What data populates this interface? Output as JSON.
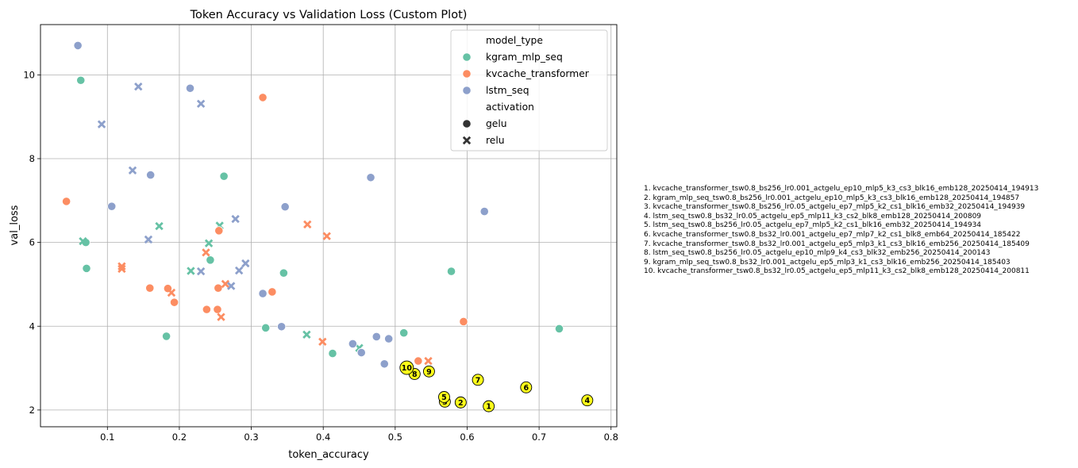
{
  "chart_data": {
    "type": "scatter",
    "title": "Token Accuracy vs Validation Loss (Custom Plot)",
    "xlabel": "token_accuracy",
    "ylabel": "val_loss",
    "xlim": [
      0.007,
      0.808
    ],
    "ylim": [
      1.6,
      11.2
    ],
    "xticks": [
      0.1,
      0.2,
      0.3,
      0.4,
      0.5,
      0.6,
      0.7,
      0.8
    ],
    "xtick_labels": [
      "0.1",
      "0.2",
      "0.3",
      "0.4",
      "0.5",
      "0.6",
      "0.7",
      "0.8"
    ],
    "yticks": [
      2,
      4,
      6,
      8,
      10
    ],
    "ytick_labels": [
      "2",
      "4",
      "6",
      "8",
      "10"
    ],
    "grid": true,
    "legend_placement": "top-right",
    "legend": {
      "hue_title": "model_type",
      "hue_entries": [
        {
          "name": "kgram_mlp_seq",
          "color": "#66c2a5"
        },
        {
          "name": "kvcache_transformer",
          "color": "#fc8d62"
        },
        {
          "name": "lstm_seq",
          "color": "#8da0cb"
        }
      ],
      "style_title": "activation",
      "style_entries": [
        {
          "name": "gelu",
          "marker": "circle"
        },
        {
          "name": "relu",
          "marker": "x"
        }
      ]
    },
    "series": [
      {
        "name": "kgram_mlp_seq",
        "color": "#66c2a5",
        "points": [
          {
            "x": 0.063,
            "y": 9.87,
            "m": "gelu"
          },
          {
            "x": 0.07,
            "y": 6.0,
            "m": "gelu"
          },
          {
            "x": 0.066,
            "y": 6.03,
            "m": "relu"
          },
          {
            "x": 0.071,
            "y": 5.38,
            "m": "gelu"
          },
          {
            "x": 0.172,
            "y": 6.39,
            "m": "relu"
          },
          {
            "x": 0.182,
            "y": 3.76,
            "m": "gelu"
          },
          {
            "x": 0.216,
            "y": 5.32,
            "m": "relu"
          },
          {
            "x": 0.241,
            "y": 5.98,
            "m": "relu"
          },
          {
            "x": 0.243,
            "y": 5.58,
            "m": "gelu"
          },
          {
            "x": 0.256,
            "y": 6.4,
            "m": "relu"
          },
          {
            "x": 0.262,
            "y": 7.58,
            "m": "gelu"
          },
          {
            "x": 0.32,
            "y": 3.96,
            "m": "gelu"
          },
          {
            "x": 0.345,
            "y": 5.27,
            "m": "gelu"
          },
          {
            "x": 0.377,
            "y": 3.8,
            "m": "relu"
          },
          {
            "x": 0.413,
            "y": 3.35,
            "m": "gelu"
          },
          {
            "x": 0.45,
            "y": 3.48,
            "m": "relu"
          },
          {
            "x": 0.512,
            "y": 3.84,
            "m": "gelu"
          },
          {
            "x": 0.578,
            "y": 5.31,
            "m": "gelu"
          },
          {
            "x": 0.728,
            "y": 3.94,
            "m": "gelu"
          }
        ]
      },
      {
        "name": "kvcache_transformer",
        "color": "#fc8d62",
        "points": [
          {
            "x": 0.043,
            "y": 6.98,
            "m": "gelu"
          },
          {
            "x": 0.12,
            "y": 5.43,
            "m": "relu"
          },
          {
            "x": 0.12,
            "y": 5.37,
            "m": "relu"
          },
          {
            "x": 0.159,
            "y": 4.91,
            "m": "gelu"
          },
          {
            "x": 0.184,
            "y": 4.9,
            "m": "gelu"
          },
          {
            "x": 0.189,
            "y": 4.8,
            "m": "relu"
          },
          {
            "x": 0.193,
            "y": 4.57,
            "m": "gelu"
          },
          {
            "x": 0.237,
            "y": 5.76,
            "m": "relu"
          },
          {
            "x": 0.238,
            "y": 4.4,
            "m": "gelu"
          },
          {
            "x": 0.253,
            "y": 4.4,
            "m": "gelu"
          },
          {
            "x": 0.254,
            "y": 4.91,
            "m": "gelu"
          },
          {
            "x": 0.255,
            "y": 6.28,
            "m": "gelu"
          },
          {
            "x": 0.258,
            "y": 4.22,
            "m": "relu"
          },
          {
            "x": 0.264,
            "y": 5.01,
            "m": "relu"
          },
          {
            "x": 0.316,
            "y": 9.46,
            "m": "gelu"
          },
          {
            "x": 0.329,
            "y": 4.82,
            "m": "gelu"
          },
          {
            "x": 0.378,
            "y": 6.43,
            "m": "relu"
          },
          {
            "x": 0.399,
            "y": 3.63,
            "m": "relu"
          },
          {
            "x": 0.405,
            "y": 6.15,
            "m": "relu"
          },
          {
            "x": 0.532,
            "y": 3.17,
            "m": "gelu"
          },
          {
            "x": 0.546,
            "y": 3.17,
            "m": "relu"
          },
          {
            "x": 0.595,
            "y": 4.11,
            "m": "gelu"
          }
        ]
      },
      {
        "name": "lstm_seq",
        "color": "#8da0cb",
        "points": [
          {
            "x": 0.059,
            "y": 10.7,
            "m": "gelu"
          },
          {
            "x": 0.092,
            "y": 8.82,
            "m": "relu"
          },
          {
            "x": 0.106,
            "y": 6.86,
            "m": "gelu"
          },
          {
            "x": 0.135,
            "y": 7.72,
            "m": "relu"
          },
          {
            "x": 0.143,
            "y": 9.72,
            "m": "relu"
          },
          {
            "x": 0.157,
            "y": 6.07,
            "m": "relu"
          },
          {
            "x": 0.16,
            "y": 7.61,
            "m": "gelu"
          },
          {
            "x": 0.215,
            "y": 9.68,
            "m": "gelu"
          },
          {
            "x": 0.23,
            "y": 9.31,
            "m": "relu"
          },
          {
            "x": 0.23,
            "y": 5.31,
            "m": "relu"
          },
          {
            "x": 0.272,
            "y": 4.96,
            "m": "relu"
          },
          {
            "x": 0.278,
            "y": 6.56,
            "m": "relu"
          },
          {
            "x": 0.283,
            "y": 5.33,
            "m": "relu"
          },
          {
            "x": 0.292,
            "y": 5.5,
            "m": "relu"
          },
          {
            "x": 0.316,
            "y": 4.78,
            "m": "gelu"
          },
          {
            "x": 0.342,
            "y": 3.99,
            "m": "gelu"
          },
          {
            "x": 0.347,
            "y": 6.85,
            "m": "gelu"
          },
          {
            "x": 0.441,
            "y": 3.58,
            "m": "gelu"
          },
          {
            "x": 0.453,
            "y": 3.37,
            "m": "gelu"
          },
          {
            "x": 0.466,
            "y": 7.55,
            "m": "gelu"
          },
          {
            "x": 0.474,
            "y": 3.75,
            "m": "gelu"
          },
          {
            "x": 0.485,
            "y": 3.1,
            "m": "gelu"
          },
          {
            "x": 0.491,
            "y": 3.7,
            "m": "gelu"
          },
          {
            "x": 0.624,
            "y": 6.74,
            "m": "gelu"
          }
        ]
      }
    ],
    "highlighted": [
      {
        "rank": "1",
        "x": 0.63,
        "y": 2.09
      },
      {
        "rank": "2",
        "x": 0.591,
        "y": 2.18
      },
      {
        "rank": "3",
        "x": 0.569,
        "y": 2.2
      },
      {
        "rank": "4",
        "x": 0.767,
        "y": 2.23
      },
      {
        "rank": "5",
        "x": 0.568,
        "y": 2.31
      },
      {
        "rank": "6",
        "x": 0.682,
        "y": 2.54
      },
      {
        "rank": "7",
        "x": 0.615,
        "y": 2.72
      },
      {
        "rank": "8",
        "x": 0.527,
        "y": 2.86
      },
      {
        "rank": "9",
        "x": 0.547,
        "y": 2.92
      },
      {
        "rank": "10",
        "x": 0.516,
        "y": 3.01
      }
    ],
    "highlight_color": "#ffff1a",
    "annotations": [
      "1. kvcache_transformer_tsw0.8_bs256_lr0.001_actgelu_ep10_mlp5_k3_cs3_blk16_emb128_20250414_194913",
      "2. kgram_mlp_seq_tsw0.8_bs256_lr0.001_actgelu_ep10_mlp5_k3_cs3_blk16_emb128_20250414_194857",
      "3. kvcache_transformer_tsw0.8_bs256_lr0.05_actgelu_ep7_mlp5_k2_cs1_blk16_emb32_20250414_194939",
      "4. lstm_seq_tsw0.8_bs32_lr0.05_actgelu_ep5_mlp11_k3_cs2_blk8_emb128_20250414_200809",
      "5. lstm_seq_tsw0.8_bs256_lr0.05_actgelu_ep7_mlp5_k2_cs1_blk16_emb32_20250414_194934",
      "6. kvcache_transformer_tsw0.8_bs32_lr0.001_actgelu_ep7_mlp7_k2_cs1_blk8_emb64_20250414_185422",
      "7. kvcache_transformer_tsw0.8_bs32_lr0.001_actgelu_ep5_mlp3_k1_cs3_blk16_emb256_20250414_185409",
      "8. lstm_seq_tsw0.8_bs256_lr0.05_actgelu_ep10_mlp9_k4_cs3_blk32_emb256_20250414_200143",
      "9. kgram_mlp_seq_tsw0.8_bs32_lr0.001_actgelu_ep5_mlp3_k1_cs3_blk16_emb256_20250414_185403",
      "10. kvcache_transformer_tsw0.8_bs32_lr0.05_actgelu_ep5_mlp11_k3_cs2_blk8_emb128_20250414_200811"
    ]
  }
}
